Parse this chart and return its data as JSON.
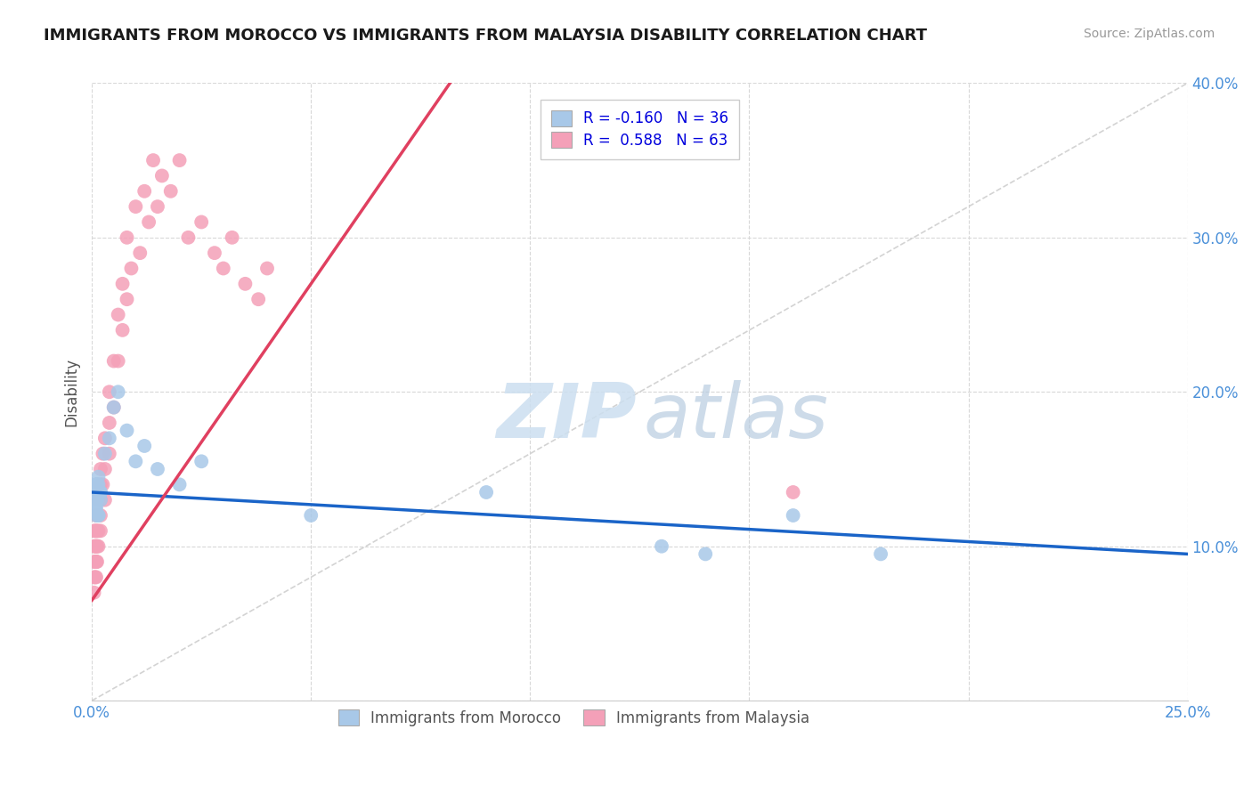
{
  "title": "IMMIGRANTS FROM MOROCCO VS IMMIGRANTS FROM MALAYSIA DISABILITY CORRELATION CHART",
  "source": "Source: ZipAtlas.com",
  "ylabel": "Disability",
  "xlim": [
    0.0,
    0.25
  ],
  "ylim": [
    0.0,
    0.4
  ],
  "xticks": [
    0.0,
    0.05,
    0.1,
    0.15,
    0.2,
    0.25
  ],
  "yticks": [
    0.0,
    0.1,
    0.2,
    0.3,
    0.4
  ],
  "xticklabels": [
    "0.0%",
    "",
    "",
    "",
    "",
    "25.0%"
  ],
  "yticklabels": [
    "",
    "10.0%",
    "20.0%",
    "30.0%",
    "40.0%"
  ],
  "morocco_color": "#a8c8e8",
  "malaysia_color": "#f4a0b8",
  "morocco_R": -0.16,
  "morocco_N": 36,
  "malaysia_R": 0.588,
  "malaysia_N": 63,
  "morocco_line_color": "#1a64c8",
  "malaysia_line_color": "#e04060",
  "diagonal_color": "#cccccc",
  "bg_color": "#ffffff",
  "grid_color": "#d8d8d8",
  "axis_tick_color": "#4a90d9",
  "ylabel_color": "#555555",
  "title_color": "#1a1a1a",
  "source_color": "#999999",
  "legend_r_color": "#0000dd",
  "legend_label_color": "#555555",
  "legend_border_color": "#cccccc",
  "watermark_zip_color": "#ccdff0",
  "watermark_atlas_color": "#b8cce0",
  "morocco_x": [
    0.0008,
    0.001,
    0.0012,
    0.0015,
    0.0008,
    0.001,
    0.0015,
    0.002,
    0.001,
    0.0008,
    0.001,
    0.0012,
    0.002,
    0.0015,
    0.001,
    0.0008,
    0.0012,
    0.002,
    0.0015,
    0.0008,
    0.003,
    0.004,
    0.005,
    0.006,
    0.008,
    0.01,
    0.012,
    0.015,
    0.02,
    0.025,
    0.05,
    0.09,
    0.13,
    0.14,
    0.16,
    0.18
  ],
  "morocco_y": [
    0.135,
    0.14,
    0.13,
    0.145,
    0.13,
    0.12,
    0.14,
    0.135,
    0.13,
    0.125,
    0.14,
    0.135,
    0.13,
    0.12,
    0.125,
    0.13,
    0.14,
    0.135,
    0.12,
    0.125,
    0.16,
    0.17,
    0.19,
    0.2,
    0.175,
    0.155,
    0.165,
    0.15,
    0.14,
    0.155,
    0.12,
    0.135,
    0.1,
    0.095,
    0.12,
    0.095
  ],
  "malaysia_x": [
    0.0005,
    0.0005,
    0.0005,
    0.0005,
    0.0005,
    0.0008,
    0.0008,
    0.0008,
    0.0008,
    0.001,
    0.001,
    0.001,
    0.001,
    0.001,
    0.001,
    0.001,
    0.0012,
    0.0012,
    0.0012,
    0.0012,
    0.0015,
    0.0015,
    0.0015,
    0.002,
    0.002,
    0.002,
    0.002,
    0.002,
    0.0025,
    0.0025,
    0.003,
    0.003,
    0.003,
    0.004,
    0.004,
    0.004,
    0.005,
    0.005,
    0.006,
    0.006,
    0.007,
    0.007,
    0.008,
    0.008,
    0.009,
    0.01,
    0.011,
    0.012,
    0.013,
    0.014,
    0.015,
    0.016,
    0.018,
    0.02,
    0.022,
    0.025,
    0.028,
    0.03,
    0.032,
    0.035,
    0.038,
    0.04,
    0.16
  ],
  "malaysia_y": [
    0.08,
    0.09,
    0.07,
    0.1,
    0.11,
    0.09,
    0.1,
    0.08,
    0.11,
    0.1,
    0.09,
    0.11,
    0.08,
    0.12,
    0.1,
    0.09,
    0.11,
    0.1,
    0.12,
    0.09,
    0.11,
    0.13,
    0.1,
    0.13,
    0.14,
    0.12,
    0.11,
    0.15,
    0.14,
    0.16,
    0.15,
    0.17,
    0.13,
    0.18,
    0.2,
    0.16,
    0.22,
    0.19,
    0.25,
    0.22,
    0.27,
    0.24,
    0.3,
    0.26,
    0.28,
    0.32,
    0.29,
    0.33,
    0.31,
    0.35,
    0.32,
    0.34,
    0.33,
    0.35,
    0.3,
    0.31,
    0.29,
    0.28,
    0.3,
    0.27,
    0.26,
    0.28,
    0.135
  ]
}
